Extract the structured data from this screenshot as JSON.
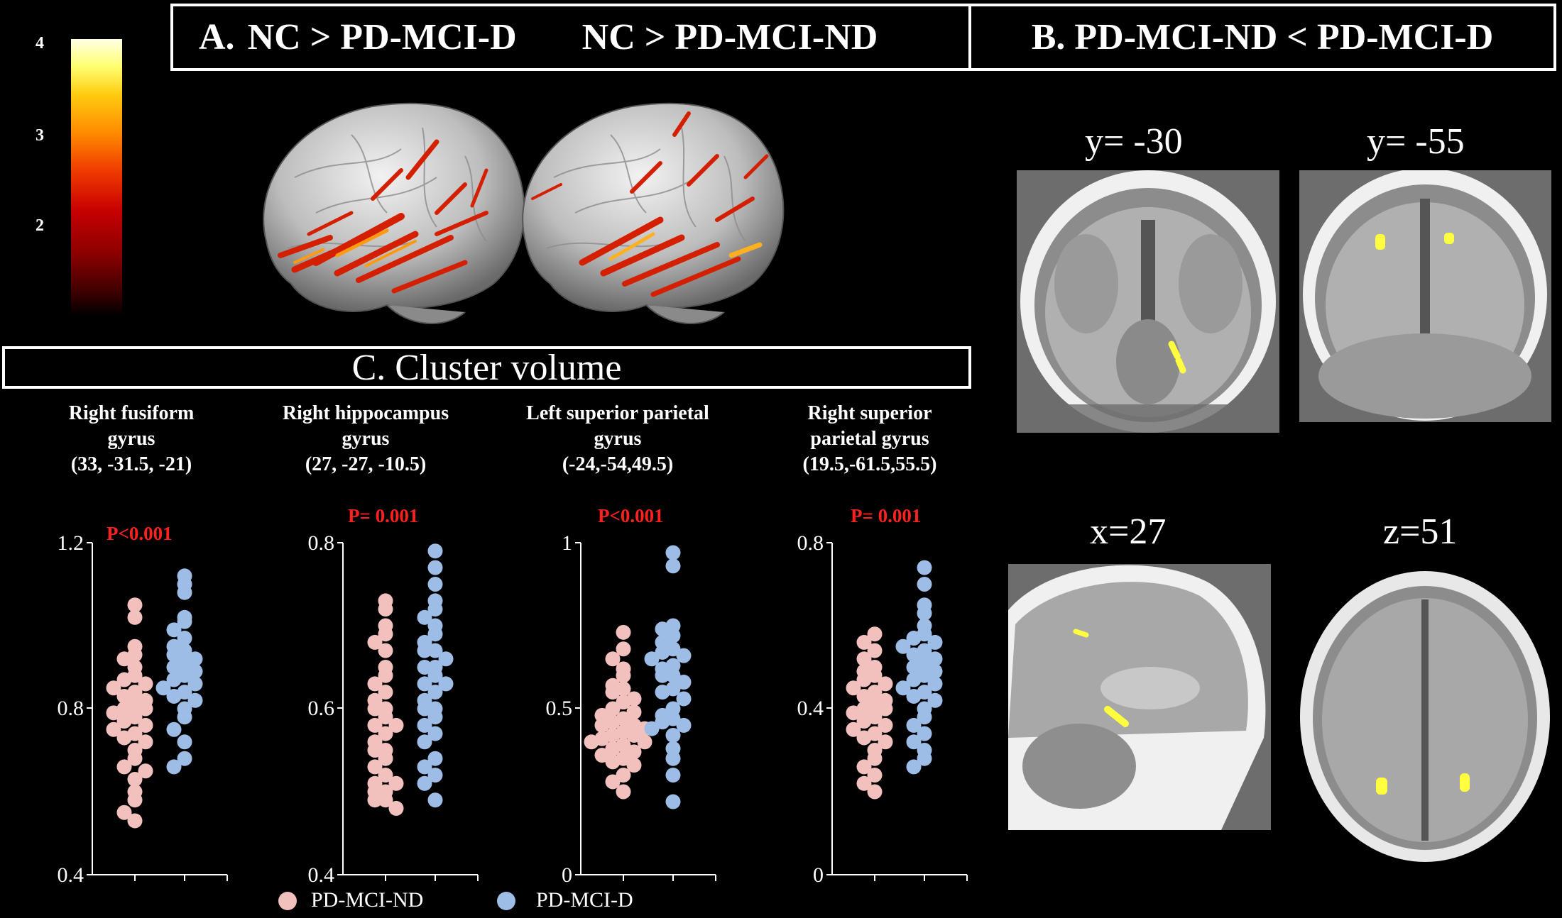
{
  "panel_a": {
    "header_prefix": "A.",
    "left_title": "NC > PD-MCI-D",
    "right_title": "NC > PD-MCI-ND"
  },
  "panel_b": {
    "header": "B.  PD-MCI-ND < PD-MCI-D",
    "slices": [
      {
        "label": "y= -30"
      },
      {
        "label": "y= -55"
      },
      {
        "label": "x=27"
      },
      {
        "label": "z=51"
      }
    ]
  },
  "colorbar": {
    "ticks": [
      "4",
      "3",
      "2"
    ],
    "colors": [
      "#000000",
      "#8a0000",
      "#ee3a00",
      "#ffcc10",
      "#ffffe6"
    ]
  },
  "panel_c": {
    "header": "C. Cluster volume"
  },
  "legend": {
    "items": [
      {
        "label": "PD-MCI-ND",
        "color": "#f2c0bd"
      },
      {
        "label": "PD-MCI-D",
        "color": "#9dbde6"
      }
    ]
  },
  "chart_data": [
    {
      "type": "scatter",
      "title": [
        "Right fusiform",
        "gyrus",
        "(33, -31.5, -21)"
      ],
      "annotation": "P<0.001",
      "ylim": [
        0.4,
        1.2
      ],
      "yticks": [
        "0.4",
        "0.8",
        "1.2"
      ],
      "series": [
        {
          "name": "PD-MCI-ND",
          "values": [
            1.05,
            1.02,
            0.95,
            0.93,
            0.92,
            0.9,
            0.88,
            0.87,
            0.86,
            0.85,
            0.84,
            0.83,
            0.82,
            0.81,
            0.8,
            0.8,
            0.79,
            0.78,
            0.77,
            0.76,
            0.75,
            0.74,
            0.73,
            0.72,
            0.7,
            0.68,
            0.66,
            0.65,
            0.63,
            0.6,
            0.58,
            0.55,
            0.53
          ]
        },
        {
          "name": "PD-MCI-D",
          "values": [
            1.12,
            1.1,
            1.08,
            1.02,
            1.01,
            0.99,
            0.97,
            0.95,
            0.94,
            0.93,
            0.92,
            0.91,
            0.9,
            0.89,
            0.88,
            0.87,
            0.86,
            0.85,
            0.84,
            0.83,
            0.82,
            0.8,
            0.78,
            0.75,
            0.72,
            0.68,
            0.66
          ]
        }
      ]
    },
    {
      "type": "scatter",
      "title": [
        "Right hippocampus",
        "gyrus",
        "(27, -27, -10.5)"
      ],
      "annotation": "P= 0.001",
      "ylim": [
        0.4,
        0.8
      ],
      "yticks": [
        "0.4",
        "0.6",
        "0.8"
      ],
      "series": [
        {
          "name": "PD-MCI-ND",
          "values": [
            0.73,
            0.72,
            0.7,
            0.69,
            0.68,
            0.67,
            0.65,
            0.64,
            0.63,
            0.62,
            0.61,
            0.6,
            0.6,
            0.59,
            0.58,
            0.58,
            0.57,
            0.56,
            0.55,
            0.55,
            0.54,
            0.53,
            0.52,
            0.51,
            0.51,
            0.5,
            0.5,
            0.49,
            0.49,
            0.48
          ]
        },
        {
          "name": "PD-MCI-D",
          "values": [
            0.79,
            0.77,
            0.75,
            0.73,
            0.72,
            0.71,
            0.7,
            0.69,
            0.68,
            0.67,
            0.67,
            0.66,
            0.65,
            0.65,
            0.64,
            0.63,
            0.63,
            0.62,
            0.61,
            0.6,
            0.6,
            0.59,
            0.58,
            0.57,
            0.56,
            0.54,
            0.53,
            0.52,
            0.51,
            0.49
          ]
        }
      ]
    },
    {
      "type": "scatter",
      "title": [
        "Left superior parietal",
        "gyrus",
        "(-24,-54,49.5)"
      ],
      "annotation": "P<0.001",
      "ylim": [
        0,
        1
      ],
      "yticks": [
        "0",
        "0.5",
        "1"
      ],
      "series": [
        {
          "name": "PD-MCI-ND",
          "values": [
            0.73,
            0.68,
            0.65,
            0.62,
            0.6,
            0.57,
            0.56,
            0.55,
            0.53,
            0.52,
            0.5,
            0.49,
            0.48,
            0.47,
            0.46,
            0.45,
            0.45,
            0.44,
            0.43,
            0.42,
            0.42,
            0.41,
            0.4,
            0.4,
            0.39,
            0.38,
            0.37,
            0.36,
            0.35,
            0.34,
            0.33,
            0.3,
            0.28,
            0.25
          ]
        },
        {
          "name": "PD-MCI-D",
          "values": [
            0.97,
            0.93,
            0.75,
            0.74,
            0.72,
            0.7,
            0.68,
            0.67,
            0.66,
            0.65,
            0.63,
            0.62,
            0.6,
            0.6,
            0.58,
            0.56,
            0.55,
            0.53,
            0.5,
            0.48,
            0.47,
            0.46,
            0.45,
            0.44,
            0.42,
            0.38,
            0.35,
            0.3,
            0.22
          ]
        }
      ]
    },
    {
      "type": "scatter",
      "title": [
        "Right superior",
        "parietal gyrus",
        "(19.5,-61.5,55.5)"
      ],
      "annotation": "P= 0.001",
      "ylim": [
        0,
        0.8
      ],
      "yticks": [
        "0",
        "0.4",
        "0.8"
      ],
      "series": [
        {
          "name": "PD-MCI-ND",
          "values": [
            0.58,
            0.56,
            0.54,
            0.52,
            0.5,
            0.49,
            0.48,
            0.47,
            0.46,
            0.45,
            0.44,
            0.43,
            0.42,
            0.41,
            0.4,
            0.4,
            0.39,
            0.38,
            0.37,
            0.36,
            0.35,
            0.34,
            0.33,
            0.32,
            0.3,
            0.28,
            0.26,
            0.24,
            0.22,
            0.2
          ]
        },
        {
          "name": "PD-MCI-D",
          "values": [
            0.74,
            0.7,
            0.65,
            0.63,
            0.6,
            0.58,
            0.57,
            0.56,
            0.55,
            0.54,
            0.53,
            0.52,
            0.51,
            0.5,
            0.49,
            0.48,
            0.47,
            0.46,
            0.45,
            0.44,
            0.43,
            0.42,
            0.4,
            0.38,
            0.36,
            0.34,
            0.32,
            0.3,
            0.28,
            0.26
          ]
        }
      ]
    }
  ]
}
